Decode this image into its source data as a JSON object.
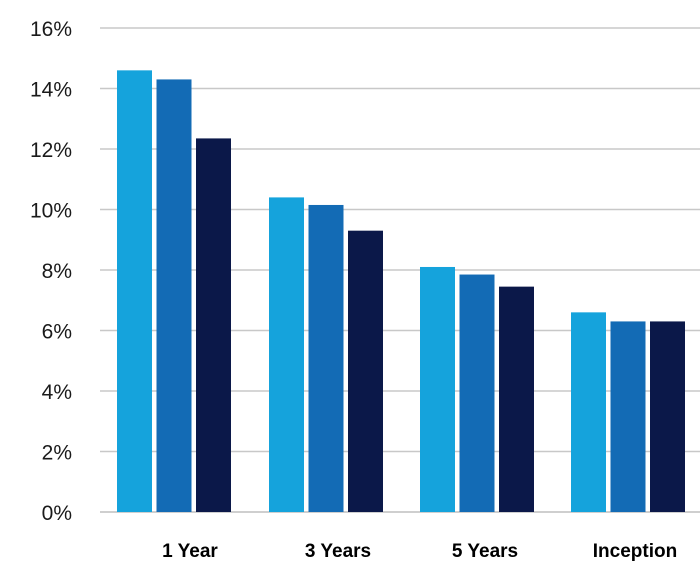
{
  "chart_data": {
    "type": "bar",
    "title": "",
    "xlabel": "",
    "ylabel": "",
    "categories": [
      "1 Year",
      "3 Years",
      "5 Years",
      "Inception"
    ],
    "series": [
      {
        "values": [
          14.6,
          10.4,
          8.1,
          6.6
        ],
        "color": "#15a3dc"
      },
      {
        "values": [
          14.3,
          10.15,
          7.85,
          6.3
        ],
        "color": "#136bb5"
      },
      {
        "values": [
          12.35,
          9.3,
          7.45,
          6.3
        ],
        "color": "#0b1849"
      }
    ],
    "ylim": [
      0,
      16
    ],
    "yticks": [
      0,
      2,
      4,
      6,
      8,
      10,
      12,
      14,
      16
    ],
    "ytick_labels": [
      "0%",
      "2%",
      "4%",
      "6%",
      "8%",
      "10%",
      "12%",
      "14%",
      "16%"
    ],
    "grid": true,
    "legend": "none"
  }
}
